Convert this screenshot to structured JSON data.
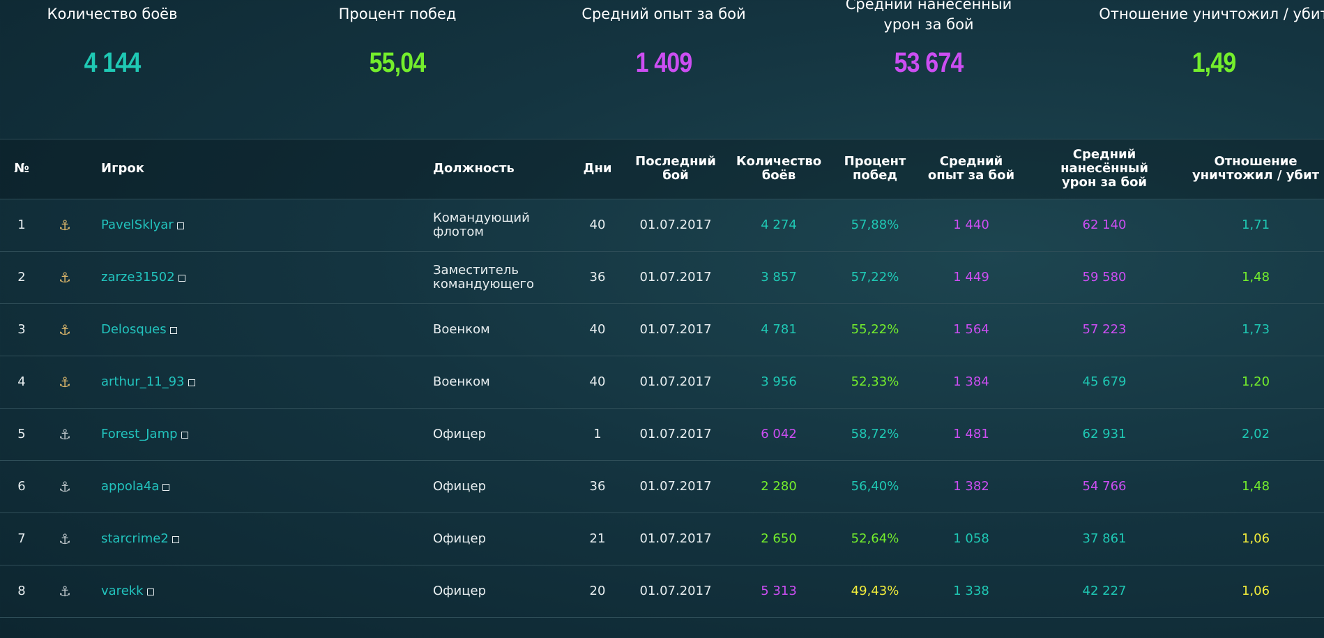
{
  "summary": [
    {
      "label": "Количество боёв",
      "value": "4 144",
      "color": "#1fc8b4"
    },
    {
      "label": "Процент побед",
      "value": "55,04",
      "color": "#74ee2c"
    },
    {
      "label": "Средний опыт за бой",
      "value": "1 409",
      "color": "#cc4ef2"
    },
    {
      "label": "Средний нанесённый урон за бой",
      "value": "53 674",
      "color": "#cc4ef2"
    },
    {
      "label": "Отношение уничтожил / убит",
      "value": "1,49",
      "color": "#74ee2c"
    }
  ],
  "table": {
    "headers": [
      "№",
      "Игрок",
      "Должность",
      "Дни",
      "Последний бой",
      "Количество боёв",
      "Процент побед",
      "Средний опыт за бой",
      "Средний нанесённый урон за бой",
      "Отношение уничтожил / убит"
    ],
    "rows": [
      {
        "cells": [
          "1",
          "PavelSklyar",
          "Командующий флотом",
          "40",
          "01.07.2017",
          "4 274",
          "57,88%",
          "1 440",
          "62 140",
          "1,71"
        ],
        "colors": [
          "#1fc8b4",
          "#1fc8b4",
          "#cc4ef2",
          "#cc4ef2",
          "#1fc8b4"
        ]
      },
      {
        "cells": [
          "2",
          "zarze31502",
          "Заместитель командующего",
          "36",
          "01.07.2017",
          "3 857",
          "57,22%",
          "1 449",
          "59 580",
          "1,48"
        ],
        "colors": [
          "#1fc8b4",
          "#1fc8b4",
          "#cc4ef2",
          "#cc4ef2",
          "#74ee2c"
        ]
      },
      {
        "cells": [
          "3",
          "Delosques",
          "Военком",
          "40",
          "01.07.2017",
          "4 781",
          "55,22%",
          "1 564",
          "57 223",
          "1,73"
        ],
        "colors": [
          "#1fc8b4",
          "#74ee2c",
          "#cc4ef2",
          "#cc4ef2",
          "#1fc8b4"
        ]
      },
      {
        "cells": [
          "4",
          "arthur_11_93",
          "Военком",
          "40",
          "01.07.2017",
          "3 956",
          "52,33%",
          "1 384",
          "45 679",
          "1,20"
        ],
        "colors": [
          "#1fc8b4",
          "#74ee2c",
          "#cc4ef2",
          "#1fc8b4",
          "#74ee2c"
        ]
      },
      {
        "cells": [
          "5",
          "Forest_Jamp",
          "Офицер",
          "1",
          "01.07.2017",
          "6 042",
          "58,72%",
          "1 481",
          "62 931",
          "2,02"
        ],
        "colors": [
          "#cc4ef2",
          "#1fc8b4",
          "#cc4ef2",
          "#1fc8b4",
          "#1fc8b4"
        ]
      },
      {
        "cells": [
          "6",
          "appola4a",
          "Офицер",
          "36",
          "01.07.2017",
          "2 280",
          "56,40%",
          "1 382",
          "54 766",
          "1,48"
        ],
        "colors": [
          "#74ee2c",
          "#1fc8b4",
          "#cc4ef2",
          "#cc4ef2",
          "#74ee2c"
        ]
      },
      {
        "cells": [
          "7",
          "starcrime2",
          "Офицер",
          "21",
          "01.07.2017",
          "2 650",
          "52,64%",
          "1 058",
          "37 861",
          "1,06"
        ],
        "colors": [
          "#74ee2c",
          "#74ee2c",
          "#1fc8b4",
          "#1fc8b4",
          "#f2ec3a"
        ]
      },
      {
        "cells": [
          "8",
          "varekk",
          "Офицер",
          "20",
          "01.07.2017",
          "5 313",
          "49,43%",
          "1 338",
          "42 227",
          "1,06"
        ],
        "colors": [
          "#cc4ef2",
          "#f2ec3a",
          "#1fc8b4",
          "#1fc8b4",
          "#f2ec3a"
        ]
      }
    ]
  }
}
